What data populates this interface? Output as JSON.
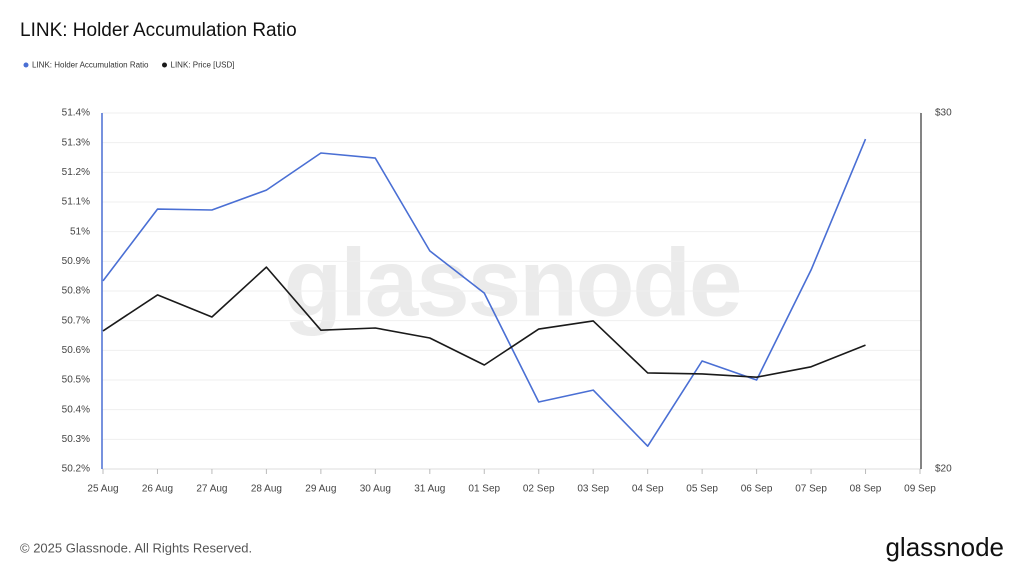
{
  "chart_data": {
    "type": "line",
    "title": "LINK: Holder Accumulation Ratio",
    "watermark": "glassnode",
    "footer": "© 2025 Glassnode. All Rights Reserved.",
    "logo": "glassnode",
    "categories": [
      "25 Aug",
      "26 Aug",
      "27 Aug",
      "28 Aug",
      "29 Aug",
      "30 Aug",
      "31 Aug",
      "01 Sep",
      "02 Sep",
      "03 Sep",
      "04 Sep",
      "05 Sep",
      "06 Sep",
      "07 Sep",
      "08 Sep",
      "09 Sep"
    ],
    "series": [
      {
        "name": "LINK: Holder Accumulation Ratio",
        "color": "#4a6fd4",
        "axis": "y",
        "values": [
          50.834,
          51.076,
          51.073,
          51.14,
          51.265,
          51.248,
          50.935,
          50.793,
          50.426,
          50.466,
          50.277,
          50.564,
          50.5,
          50.871,
          51.312,
          null
        ]
      },
      {
        "name": "LINK: Price [USD]",
        "color": "#1a1a1a",
        "axis": "y2",
        "values": [
          23.88,
          24.89,
          24.27,
          25.67,
          23.9,
          23.96,
          23.68,
          22.92,
          23.93,
          24.16,
          22.7,
          22.67,
          22.58,
          22.87,
          23.48,
          null
        ]
      }
    ],
    "ylim": [
      50.2,
      51.4
    ],
    "yticks": [
      {
        "value": 50.2,
        "label": "50.2%"
      },
      {
        "value": 50.3,
        "label": "50.3%"
      },
      {
        "value": 50.4,
        "label": "50.4%"
      },
      {
        "value": 50.5,
        "label": "50.5%"
      },
      {
        "value": 50.6,
        "label": "50.6%"
      },
      {
        "value": 50.7,
        "label": "50.7%"
      },
      {
        "value": 50.8,
        "label": "50.8%"
      },
      {
        "value": 50.9,
        "label": "50.9%"
      },
      {
        "value": 51,
        "label": "51%"
      },
      {
        "value": 51.1,
        "label": "51.1%"
      },
      {
        "value": 51.2,
        "label": "51.2%"
      },
      {
        "value": 51.3,
        "label": "51.3%"
      },
      {
        "value": 51.4,
        "label": "51.4%"
      }
    ],
    "y2lim": [
      20,
      30
    ],
    "y2ticks": [
      {
        "value": 20,
        "label": "$20"
      },
      {
        "value": 30,
        "label": "$30"
      }
    ],
    "grid": true,
    "legend": "top-left"
  }
}
